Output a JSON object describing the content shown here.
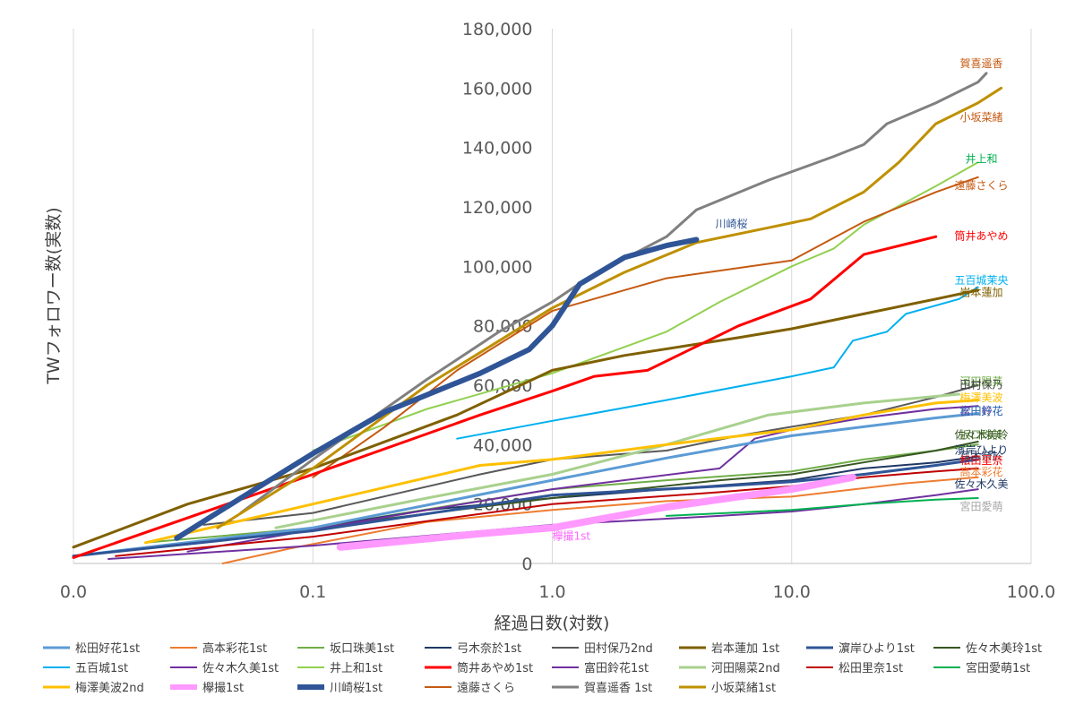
{
  "chart_data": {
    "type": "line",
    "x_scale": "log",
    "xlabel": "経過日数(対数)",
    "ylabel": "TWフォロワー数(実数)",
    "xlim": [
      0.01,
      100
    ],
    "ylim": [
      0,
      180000
    ],
    "x_tick_labels": [
      "0.0",
      "0.1",
      "1.0",
      "10.0",
      "100.0"
    ],
    "y_tick_labels": [
      "0",
      "20,000",
      "40,000",
      "60,000",
      "80,000",
      "100,000",
      "120,000",
      "140,000",
      "160,000",
      "180,000"
    ],
    "grid": "vertical",
    "legend_position": "bottom",
    "series": [
      {
        "name": "松田好花1st",
        "color": "#5b9bd5",
        "width": 3,
        "label": "松田好花",
        "label_color": "#2e75b6",
        "points": [
          [
            0.01,
            2500
          ],
          [
            0.1,
            12000
          ],
          [
            1,
            28000
          ],
          [
            3,
            35500
          ],
          [
            10,
            43000
          ],
          [
            20,
            46000
          ],
          [
            40,
            49000
          ],
          [
            60,
            50500
          ]
        ]
      },
      {
        "name": "高本彩花1st",
        "color": "#ed7d31",
        "width": 2,
        "label": "高本彩花",
        "label_color": "#ed7d31",
        "points": [
          [
            0.042,
            0
          ],
          [
            0.08,
            5000
          ],
          [
            0.3,
            14000
          ],
          [
            1,
            18000
          ],
          [
            3,
            21000
          ],
          [
            10,
            22500
          ],
          [
            30,
            27000
          ],
          [
            60,
            29000
          ]
        ]
      },
      {
        "name": "坂口珠美1st",
        "color": "#70ad47",
        "width": 2,
        "label": "坂口珠美",
        "label_color": "#548235",
        "points": [
          [
            0.02,
            7000
          ],
          [
            0.1,
            12000
          ],
          [
            1,
            25000
          ],
          [
            3,
            28000
          ],
          [
            10,
            31000
          ],
          [
            20,
            35000
          ],
          [
            40,
            38000
          ],
          [
            60,
            40000
          ]
        ]
      },
      {
        "name": "弓木奈於1st",
        "color": "#1f3864",
        "width": 2,
        "label": "弓木奈於",
        "label_color": "#1f3864",
        "points": [
          [
            0.07,
            10000
          ],
          [
            0.3,
            18000
          ],
          [
            1,
            22000
          ],
          [
            3,
            25000
          ],
          [
            10,
            28000
          ],
          [
            20,
            32000
          ],
          [
            40,
            34000
          ],
          [
            60,
            36000
          ]
        ]
      },
      {
        "name": "田村保乃2nd",
        "color": "#595959",
        "width": 2,
        "label": "田村保乃",
        "label_color": "#404040",
        "points": [
          [
            0.035,
            13000
          ],
          [
            0.1,
            17000
          ],
          [
            0.5,
            30000
          ],
          [
            1,
            35000
          ],
          [
            3,
            38000
          ],
          [
            6,
            43000
          ],
          [
            10,
            46000
          ],
          [
            20,
            50000
          ],
          [
            40,
            56000
          ],
          [
            60,
            60000
          ]
        ]
      },
      {
        "name": "岩本蓮加 1st",
        "color": "#7f6000",
        "width": 3,
        "label": "岩本蓮加",
        "label_color": "#7f6000",
        "points": [
          [
            0.01,
            5500
          ],
          [
            0.03,
            20000
          ],
          [
            0.1,
            32000
          ],
          [
            0.4,
            50000
          ],
          [
            1,
            65000
          ],
          [
            2,
            70000
          ],
          [
            6,
            76000
          ],
          [
            10,
            79000
          ],
          [
            20,
            84000
          ],
          [
            40,
            89000
          ],
          [
            60,
            92000
          ]
        ]
      },
      {
        "name": "濵岸ひより1st",
        "color": "#2f5597",
        "width": 3,
        "label": "濱岸ひより",
        "label_color": "#1f3864",
        "points": [
          [
            0.01,
            2500
          ],
          [
            0.1,
            11000
          ],
          [
            1,
            23000
          ],
          [
            5,
            26000
          ],
          [
            10,
            27500
          ],
          [
            20,
            30000
          ],
          [
            40,
            33000
          ],
          [
            60,
            35000
          ]
        ]
      },
      {
        "name": "佐々木美玲1st",
        "color": "#375623",
        "width": 2,
        "label": "佐々木美玲",
        "label_color": "#375623",
        "points": [
          [
            0.1,
            12000
          ],
          [
            1,
            22000
          ],
          [
            5,
            28000
          ],
          [
            10,
            30000
          ],
          [
            20,
            34000
          ],
          [
            40,
            38000
          ],
          [
            60,
            41000
          ]
        ]
      },
      {
        "name": "五百城1st",
        "color": "#00b0f0",
        "width": 2,
        "label": "五百城茉央",
        "label_color": "#00b0f0",
        "points": [
          [
            0.4,
            42000
          ],
          [
            1,
            48000
          ],
          [
            3,
            55000
          ],
          [
            10,
            63000
          ],
          [
            15,
            66000
          ],
          [
            18,
            75000
          ],
          [
            25,
            78000
          ],
          [
            30,
            84000
          ],
          [
            50,
            89000
          ],
          [
            60,
            93000
          ]
        ]
      },
      {
        "name": "佐々木久美1st",
        "color": "#7030a0",
        "width": 2,
        "label": "佐々木久美",
        "label_color": "#1f3864",
        "points": [
          [
            0.014,
            1500
          ],
          [
            0.1,
            6000
          ],
          [
            1,
            13000
          ],
          [
            5,
            16000
          ],
          [
            10,
            17500
          ],
          [
            20,
            20000
          ],
          [
            40,
            23000
          ],
          [
            60,
            25000
          ]
        ]
      },
      {
        "name": "井上和1st",
        "color": "#92d050",
        "width": 2,
        "label": "井上和",
        "label_color": "#00b050",
        "points": [
          [
            0.1,
            38000
          ],
          [
            0.3,
            52000
          ],
          [
            1,
            64000
          ],
          [
            3,
            78000
          ],
          [
            5,
            88000
          ],
          [
            10,
            100000
          ],
          [
            15,
            106000
          ],
          [
            20,
            114000
          ],
          [
            40,
            127000
          ],
          [
            60,
            135000
          ]
        ]
      },
      {
        "name": "筒井あやめ1st",
        "color": "#ff0000",
        "width": 3,
        "label": "筒井あやめ",
        "label_color": "#ff0000",
        "points": [
          [
            0.01,
            2000
          ],
          [
            0.1,
            30000
          ],
          [
            0.5,
            50000
          ],
          [
            1,
            58000
          ],
          [
            1.5,
            63000
          ],
          [
            2.5,
            65000
          ],
          [
            6,
            80000
          ],
          [
            12,
            89000
          ],
          [
            20,
            104000
          ],
          [
            40,
            110000
          ]
        ]
      },
      {
        "name": "富田鈴花1st",
        "color": "#7030a0",
        "width": 2,
        "label": "富田鈴花",
        "label_color": "#7030a0",
        "points": [
          [
            0.03,
            4000
          ],
          [
            0.3,
            18000
          ],
          [
            1,
            25000
          ],
          [
            5,
            32000
          ],
          [
            7,
            42000
          ],
          [
            10,
            45000
          ],
          [
            20,
            49000
          ],
          [
            40,
            52000
          ],
          [
            60,
            53000
          ]
        ]
      },
      {
        "name": "河田陽菜2nd",
        "color": "#a9d18e",
        "width": 3,
        "label": "河田陽菜",
        "label_color": "#70ad47",
        "points": [
          [
            0.07,
            12000
          ],
          [
            0.3,
            22000
          ],
          [
            1,
            30000
          ],
          [
            3,
            40000
          ],
          [
            8,
            50000
          ],
          [
            20,
            54000
          ],
          [
            50,
            57000
          ]
        ]
      },
      {
        "name": "松田里奈1st",
        "color": "#c00000",
        "width": 2,
        "label": "松田里奈",
        "label_color": "#ff0000",
        "points": [
          [
            0.015,
            2500
          ],
          [
            0.1,
            9000
          ],
          [
            1,
            20000
          ],
          [
            5,
            24000
          ],
          [
            10,
            26000
          ],
          [
            20,
            29000
          ],
          [
            40,
            31000
          ],
          [
            60,
            32000
          ]
        ]
      },
      {
        "name": "宮田愛萌1st",
        "color": "#00b050",
        "width": 2,
        "label": "宮田愛萌",
        "label_color": "#a6a6a6",
        "points": [
          [
            3,
            16000
          ],
          [
            10,
            18000
          ],
          [
            20,
            20000
          ],
          [
            40,
            21500
          ],
          [
            60,
            22000
          ]
        ]
      },
      {
        "name": "梅澤美波2nd",
        "color": "#ffc000",
        "width": 3,
        "label": "梅澤美波",
        "label_color": "#ffc000",
        "points": [
          [
            0.02,
            7000
          ],
          [
            0.1,
            20000
          ],
          [
            0.5,
            33000
          ],
          [
            1,
            35000
          ],
          [
            3,
            40000
          ],
          [
            10,
            45000
          ],
          [
            20,
            50000
          ],
          [
            40,
            54000
          ],
          [
            60,
            55000
          ]
        ]
      },
      {
        "name": "欅撮1st",
        "color": "#ff99ff",
        "width": 8,
        "label": "欅撮1st",
        "label_color": "#ff66ff",
        "points": [
          [
            0.13,
            5500
          ],
          [
            0.5,
            10000
          ],
          [
            1,
            12000
          ],
          [
            3,
            19000
          ],
          [
            10,
            25000
          ],
          [
            18,
            29000
          ]
        ]
      },
      {
        "name": "川崎桜1st",
        "color": "#2f5597",
        "width": 6,
        "label": "川崎桜",
        "label_color": "#2f5597",
        "points": [
          [
            0.027,
            8500
          ],
          [
            0.05,
            22000
          ],
          [
            0.1,
            37000
          ],
          [
            0.2,
            51000
          ],
          [
            0.5,
            64000
          ],
          [
            0.8,
            72000
          ],
          [
            1,
            80000
          ],
          [
            1.3,
            94000
          ],
          [
            2,
            103000
          ],
          [
            3,
            107000
          ],
          [
            4,
            109000
          ]
        ]
      },
      {
        "name": "遠藤さくら",
        "color": "#c55a11",
        "width": 2,
        "label": "遠藤さくら",
        "label_color": "#c55a11",
        "points": [
          [
            0.1,
            29000
          ],
          [
            0.2,
            46000
          ],
          [
            0.4,
            65000
          ],
          [
            1,
            85000
          ],
          [
            2,
            92000
          ],
          [
            3,
            96000
          ],
          [
            10,
            102000
          ],
          [
            20,
            115000
          ],
          [
            40,
            125000
          ],
          [
            60,
            130000
          ]
        ]
      },
      {
        "name": "賀喜遥香 1st",
        "color": "#808080",
        "width": 3,
        "label": "賀喜遥香",
        "label_color": "#c55a11",
        "points": [
          [
            0.05,
            17000
          ],
          [
            0.1,
            35000
          ],
          [
            0.3,
            62000
          ],
          [
            0.6,
            78000
          ],
          [
            1,
            88000
          ],
          [
            1.4,
            96000
          ],
          [
            3,
            110000
          ],
          [
            4,
            119000
          ],
          [
            8,
            129000
          ],
          [
            15,
            137000
          ],
          [
            20,
            141000
          ],
          [
            25,
            148000
          ],
          [
            40,
            155000
          ],
          [
            60,
            162000
          ],
          [
            65,
            165000
          ]
        ]
      },
      {
        "name": "小坂菜緒1st",
        "color": "#bf9000",
        "width": 3,
        "label": "小坂菜緒",
        "label_color": "#c55a11",
        "points": [
          [
            0.04,
            12000
          ],
          [
            0.1,
            32000
          ],
          [
            0.3,
            60000
          ],
          [
            1,
            86000
          ],
          [
            2,
            98000
          ],
          [
            4,
            108000
          ],
          [
            8,
            113000
          ],
          [
            12,
            116000
          ],
          [
            20,
            125000
          ],
          [
            28,
            135000
          ],
          [
            40,
            148000
          ],
          [
            60,
            155000
          ],
          [
            75,
            160000
          ]
        ]
      }
    ],
    "series_labels": [
      {
        "name": "川崎桜",
        "color": "#2f5597",
        "x": 4.8,
        "y": 113000
      },
      {
        "name": "賀喜遥香",
        "color": "#c55a11",
        "x": 62,
        "y": 167000
      },
      {
        "name": "小坂菜緒",
        "color": "#c55a11",
        "x": 62,
        "y": 149000
      },
      {
        "name": "井上和",
        "color": "#00b050",
        "x": 62,
        "y": 135000
      },
      {
        "name": "遠藤さくら",
        "color": "#c55a11",
        "x": 62,
        "y": 126000
      },
      {
        "name": "筒井あやめ",
        "color": "#ff0000",
        "x": 62,
        "y": 109000
      },
      {
        "name": "五百城茉央",
        "color": "#00b0f0",
        "x": 62,
        "y": 94000
      },
      {
        "name": "岩本蓮加",
        "color": "#7f6000",
        "x": 62,
        "y": 90000
      },
      {
        "name": "河田陽菜",
        "color": "#70ad47",
        "x": 62,
        "y": 60000
      },
      {
        "name": "田村保乃",
        "color": "#404040",
        "x": 62,
        "y": 59000
      },
      {
        "name": "梅澤美波",
        "color": "#ffc000",
        "x": 62,
        "y": 54500
      },
      {
        "name": "富田鈴花",
        "color": "#7030a0",
        "x": 62,
        "y": 50000
      },
      {
        "name": "松田好花",
        "color": "#2e75b6",
        "x": 62,
        "y": 50000
      },
      {
        "name": "坂口珠美",
        "color": "#548235",
        "x": 62,
        "y": 42000
      },
      {
        "name": "佐々木美玲",
        "color": "#375623",
        "x": 62,
        "y": 42000
      },
      {
        "name": "濱岸ひより",
        "color": "#1f3864",
        "x": 62,
        "y": 37000
      },
      {
        "name": "弓木奈於",
        "color": "#1f3864",
        "x": 62,
        "y": 35000
      },
      {
        "name": "松田里奈",
        "color": "#ff0000",
        "x": 62,
        "y": 33500
      },
      {
        "name": "高本彩花",
        "color": "#ed7d31",
        "x": 62,
        "y": 29500
      },
      {
        "name": "佐々木久美",
        "color": "#1f3864",
        "x": 62,
        "y": 25500
      },
      {
        "name": "宮田愛萌",
        "color": "#a6a6a6",
        "x": 62,
        "y": 18000
      },
      {
        "name": "欅撮1st",
        "color": "#ff66ff",
        "x": 1.0,
        "y": 8000
      }
    ]
  }
}
